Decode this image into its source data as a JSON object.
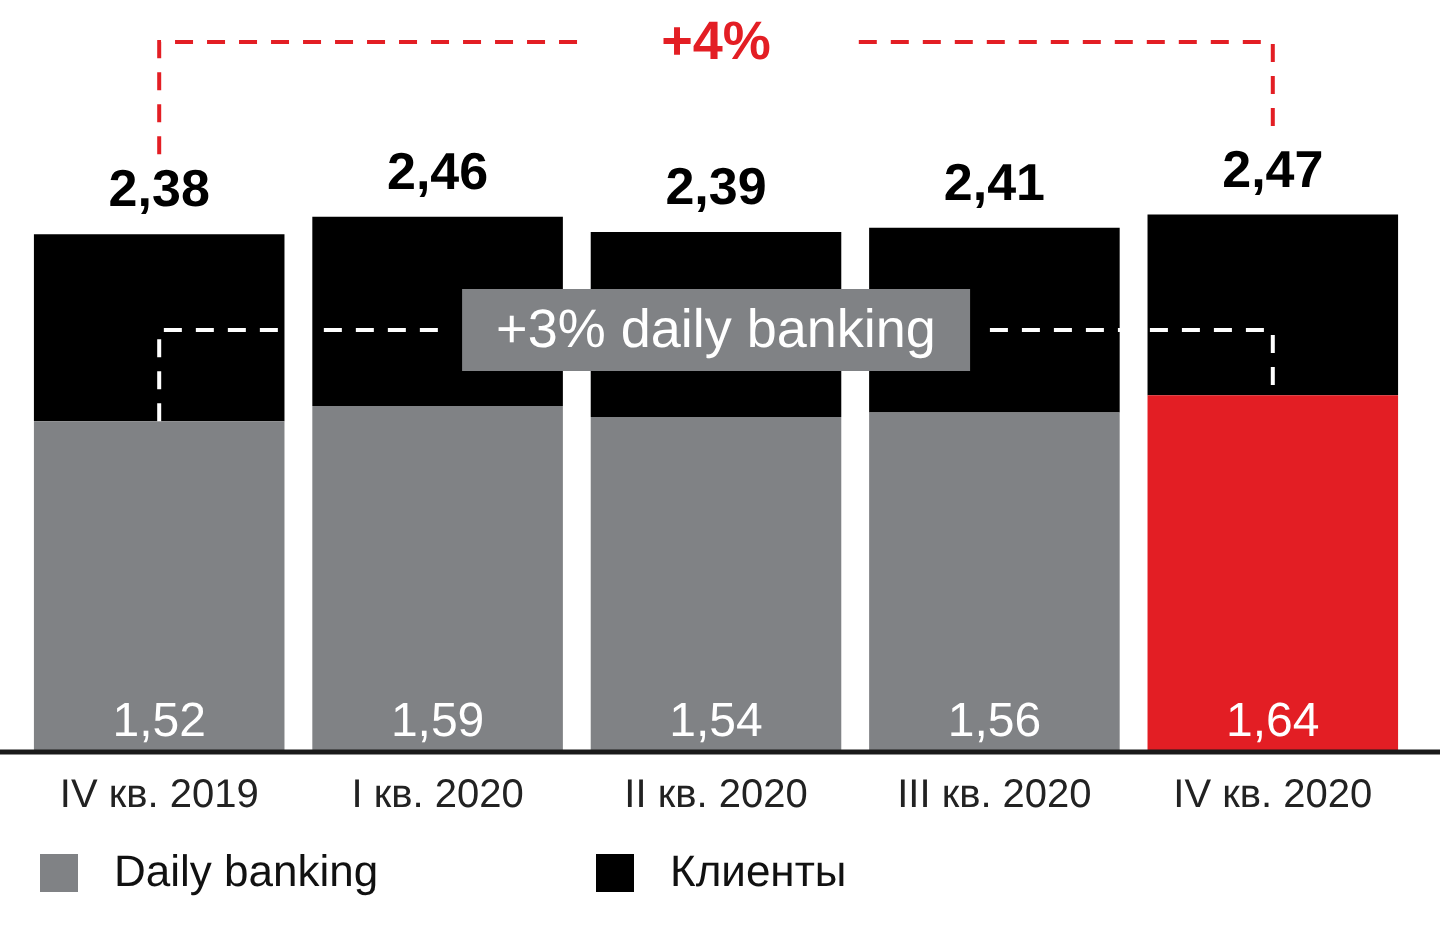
{
  "chart_data": {
    "type": "bar",
    "stacked": true,
    "categories": [
      "IV кв. 2019",
      "I кв. 2020",
      "II кв. 2020",
      "III кв. 2020",
      "IV кв. 2020"
    ],
    "series": [
      {
        "name": "Daily banking",
        "color": "#808285",
        "colors": [
          "#808285",
          "#808285",
          "#808285",
          "#808285",
          "#e31e24"
        ],
        "values": [
          1.52,
          1.59,
          1.54,
          1.56,
          1.64
        ],
        "value_labels": [
          "1,52",
          "1,59",
          "1,54",
          "1,56",
          "1,64"
        ]
      },
      {
        "name": "Клиенты",
        "color": "#000000",
        "values": [
          0.86,
          0.87,
          0.85,
          0.85,
          0.83
        ]
      }
    ],
    "totals": [
      "2,38",
      "2,46",
      "2,39",
      "2,41",
      "2,47"
    ],
    "annotations": [
      "+4%",
      "+3% daily banking"
    ],
    "tick_labels": "x",
    "grid": false,
    "legend": "bottom"
  }
}
